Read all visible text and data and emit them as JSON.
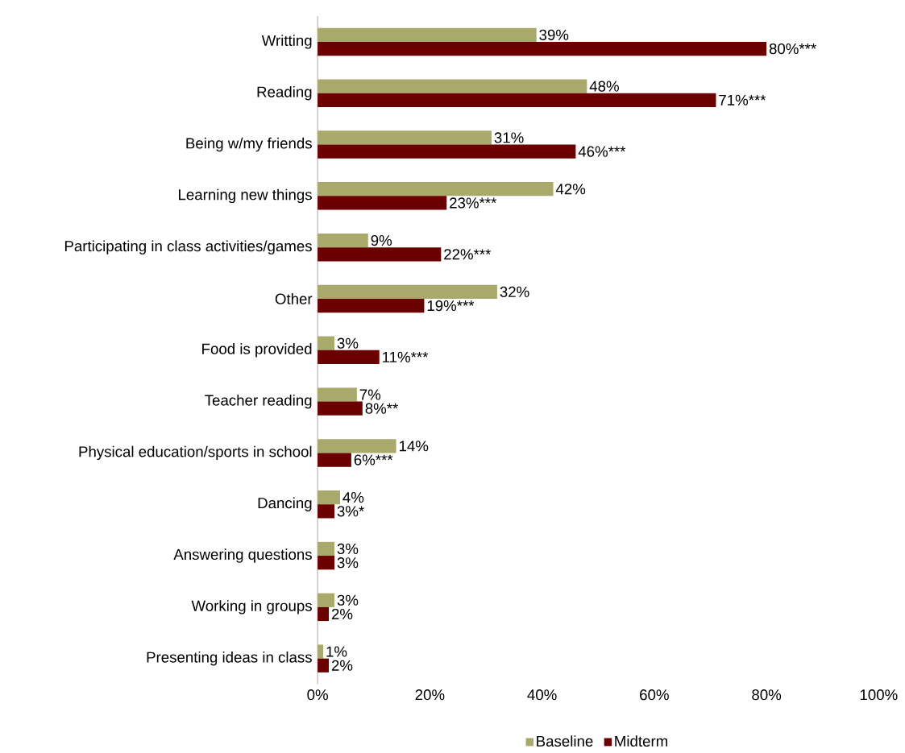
{
  "chart_data": {
    "type": "bar",
    "orientation": "horizontal",
    "categories": [
      "Writting",
      "Reading",
      "Being w/my friends",
      "Learning new things",
      "Participating in class activities/games",
      "Other",
      "Food is provided",
      "Teacher reading",
      "Physical education/sports in school",
      "Dancing",
      "Answering questions",
      "Working in groups",
      "Presenting ideas in class"
    ],
    "series": [
      {
        "name": "Baseline",
        "color": "#a9a96b",
        "values": [
          39,
          48,
          31,
          42,
          9,
          32,
          3,
          7,
          14,
          4,
          3,
          3,
          1
        ],
        "value_labels": [
          "39%",
          "48%",
          "31%",
          "42%",
          "9%",
          "32%",
          "3%",
          "7%",
          "14%",
          "4%",
          "3%",
          "3%",
          "1%"
        ]
      },
      {
        "name": "Midterm",
        "color": "#6b0000",
        "values": [
          80,
          71,
          46,
          23,
          22,
          19,
          11,
          8,
          6,
          3,
          3,
          2,
          2
        ],
        "value_labels": [
          "80%***",
          "71%***",
          "46%***",
          "23%***",
          "22%***",
          "19%***",
          "11%***",
          "8%**",
          "6%***",
          "3%*",
          "3%",
          "2%",
          "2%"
        ]
      }
    ],
    "xlim": [
      0,
      100
    ],
    "xticks": [
      {
        "value": 0,
        "label": "0%"
      },
      {
        "value": 20,
        "label": "20%"
      },
      {
        "value": 40,
        "label": "40%"
      },
      {
        "value": 60,
        "label": "60%"
      },
      {
        "value": 80,
        "label": "80%"
      },
      {
        "value": 100,
        "label": "100%"
      }
    ],
    "grid": false,
    "legend": "bottom"
  }
}
